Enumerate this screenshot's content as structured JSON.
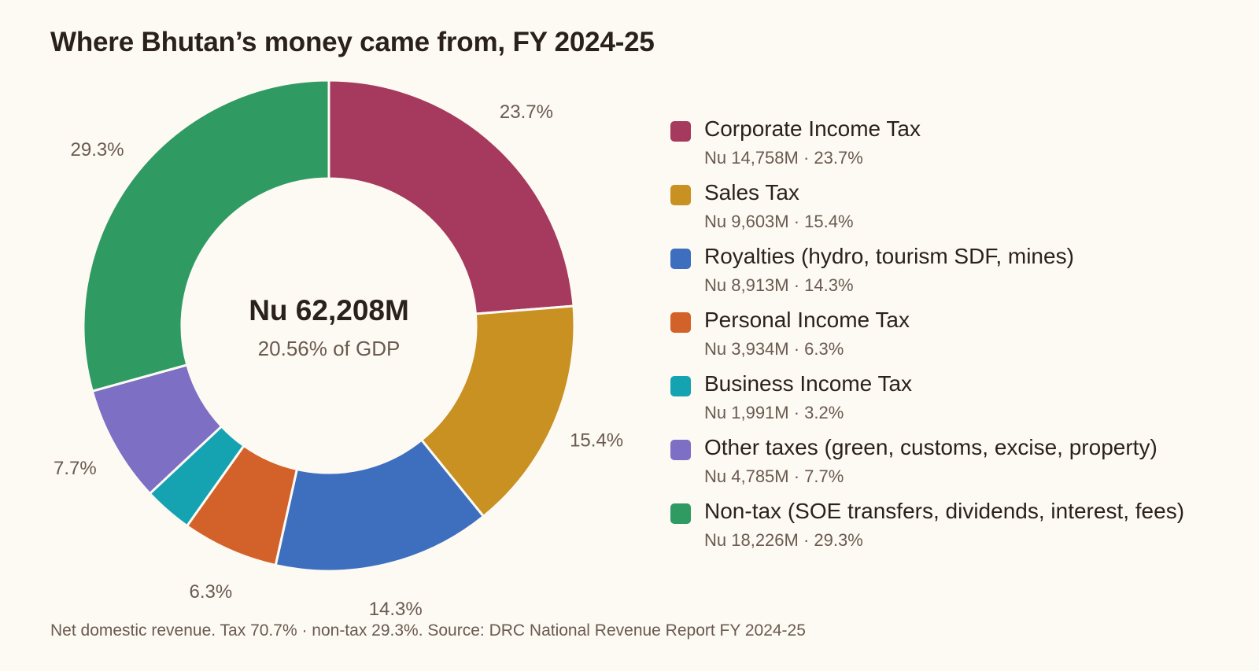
{
  "title": "Where Bhutan’s money came from, FY 2024-25",
  "center": {
    "total": "Nu 62,208M",
    "subtitle": "20.56% of GDP"
  },
  "footnote": "Net domestic revenue. Tax 70.7% · non-tax 29.3%. Source: DRC National Revenue Report FY 2024-25",
  "chart_data": {
    "type": "pie",
    "donut": true,
    "title": "Where Bhutan’s money came from, FY 2024-25",
    "legend_position": "right",
    "total": "Nu 62,208M",
    "slices": [
      {
        "name": "Corporate Income Tax",
        "value": 14758,
        "percent": 23.7,
        "color": "#a53a5e",
        "pct_label": "23.7%",
        "legend_value": "Nu 14,758M · 23.7%"
      },
      {
        "name": "Sales Tax",
        "value": 9603,
        "percent": 15.4,
        "color": "#c99022",
        "pct_label": "15.4%",
        "legend_value": "Nu 9,603M · 15.4%"
      },
      {
        "name": "Royalties (hydro, tourism SDF, mines)",
        "value": 8913,
        "percent": 14.3,
        "color": "#3e6fbf",
        "pct_label": "14.3%",
        "legend_value": "Nu 8,913M · 14.3%"
      },
      {
        "name": "Personal Income Tax",
        "value": 3934,
        "percent": 6.3,
        "color": "#d2622a",
        "pct_label": "6.3%",
        "legend_value": "Nu 3,934M · 6.3%"
      },
      {
        "name": "Business Income Tax",
        "value": 1991,
        "percent": 3.2,
        "color": "#15a3b2",
        "pct_label": "",
        "legend_value": "Nu 1,991M · 3.2%"
      },
      {
        "name": "Other taxes (green, customs, excise, property)",
        "value": 4785,
        "percent": 7.7,
        "color": "#7c6fc4",
        "pct_label": "7.7%",
        "legend_value": "Nu 4,785M · 7.7%"
      },
      {
        "name": "Non-tax (SOE transfers, dividends, interest, fees)",
        "value": 18226,
        "percent": 29.3,
        "color": "#2f9a62",
        "pct_label": "29.3%",
        "legend_value": "Nu 18,226M · 29.3%"
      }
    ]
  }
}
